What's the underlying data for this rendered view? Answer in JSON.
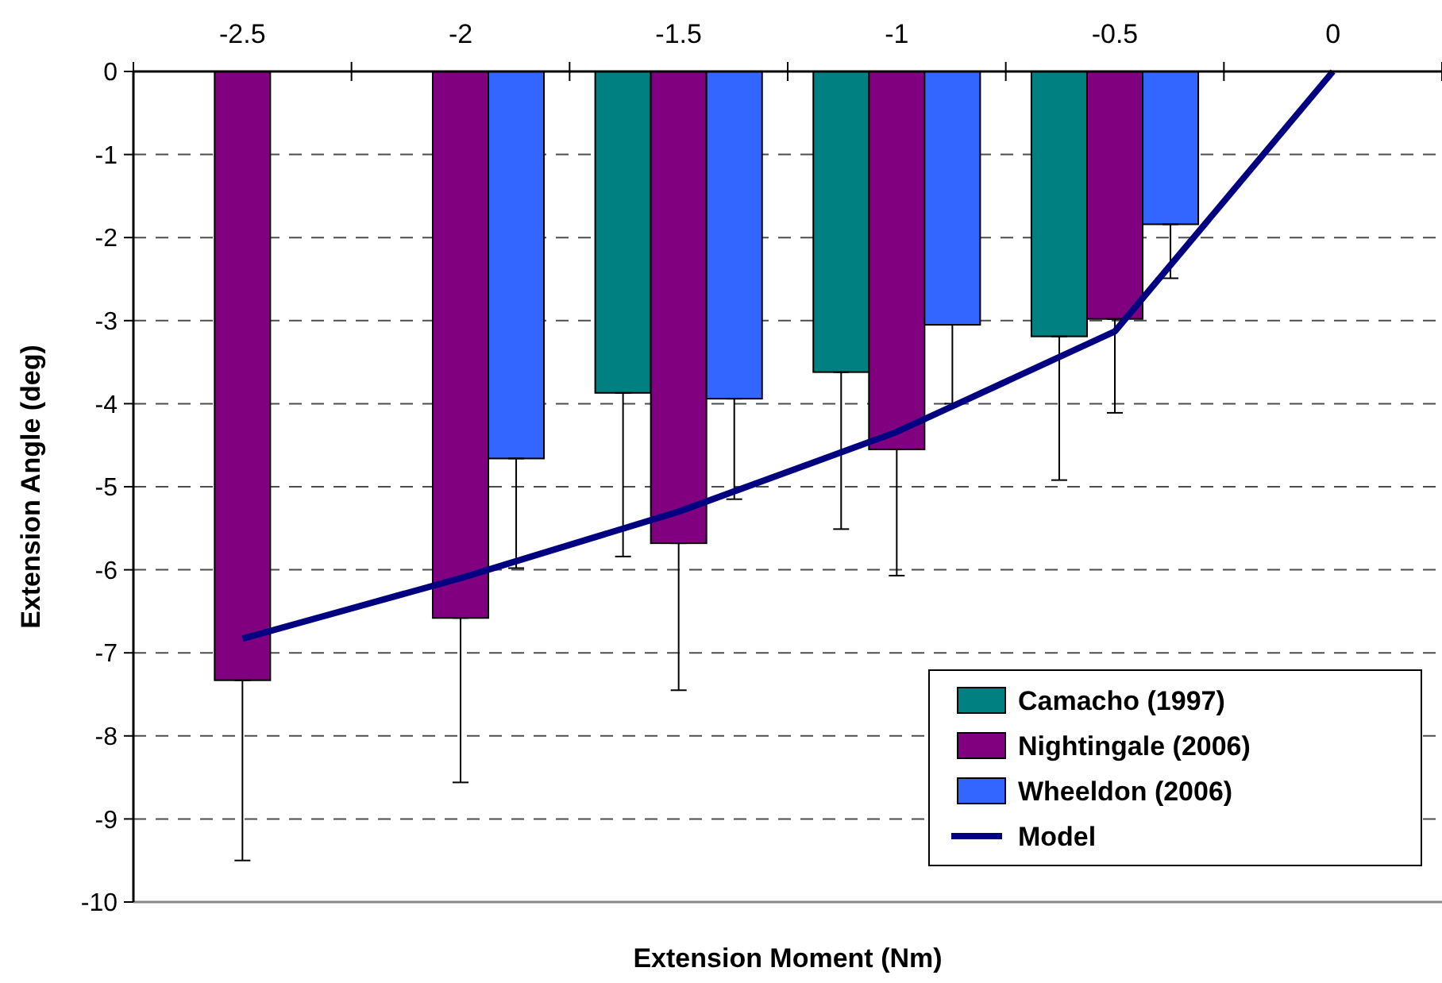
{
  "chart_data": {
    "type": "bar",
    "xlabel": "Extension Moment (Nm)",
    "ylabel": "Extension Angle (deg)",
    "categories": [
      "-2.5",
      "-2",
      "-1.5",
      "-1",
      "-0.5",
      "0"
    ],
    "ylim": [
      -10,
      0
    ],
    "yticks": [
      0,
      -1,
      -2,
      -3,
      -4,
      -5,
      -6,
      -7,
      -8,
      -9,
      -10
    ],
    "grid": "y",
    "legend": "bottom right",
    "series": [
      {
        "name": "Camacho (1997)",
        "color": "#008080",
        "values": [
          null,
          null,
          -3.87,
          -3.62,
          -3.19,
          null
        ],
        "errors": [
          null,
          null,
          [
            -5.84,
            -3.87
          ],
          [
            -5.51,
            -3.62
          ],
          [
            -4.92,
            -3.19
          ],
          null
        ]
      },
      {
        "name": "Nightingale (2006)",
        "color": "#800080",
        "values": [
          -7.33,
          -6.58,
          -5.68,
          -4.55,
          -2.98,
          null
        ],
        "errors": [
          [
            -9.5,
            -7.33
          ],
          [
            -8.56,
            -6.58
          ],
          [
            -7.45,
            -5.68
          ],
          [
            -6.07,
            -4.55
          ],
          [
            -4.11,
            -2.98
          ],
          null
        ]
      },
      {
        "name": "Wheeldon (2006)",
        "color": "#3366ff",
        "values": [
          null,
          -4.66,
          -3.94,
          -3.05,
          -1.84,
          null
        ],
        "errors": [
          null,
          [
            -5.98,
            -4.66
          ],
          [
            -5.15,
            -3.94
          ],
          [
            -4.0,
            -3.05
          ],
          [
            -2.49,
            -1.84
          ],
          null
        ]
      },
      {
        "name": "Model",
        "type": "line",
        "color": "#000080",
        "marker": "none",
        "line_style": "solid",
        "values": [
          -6.83,
          -6.1,
          -5.3,
          -4.34,
          -3.13,
          0
        ]
      }
    ]
  }
}
